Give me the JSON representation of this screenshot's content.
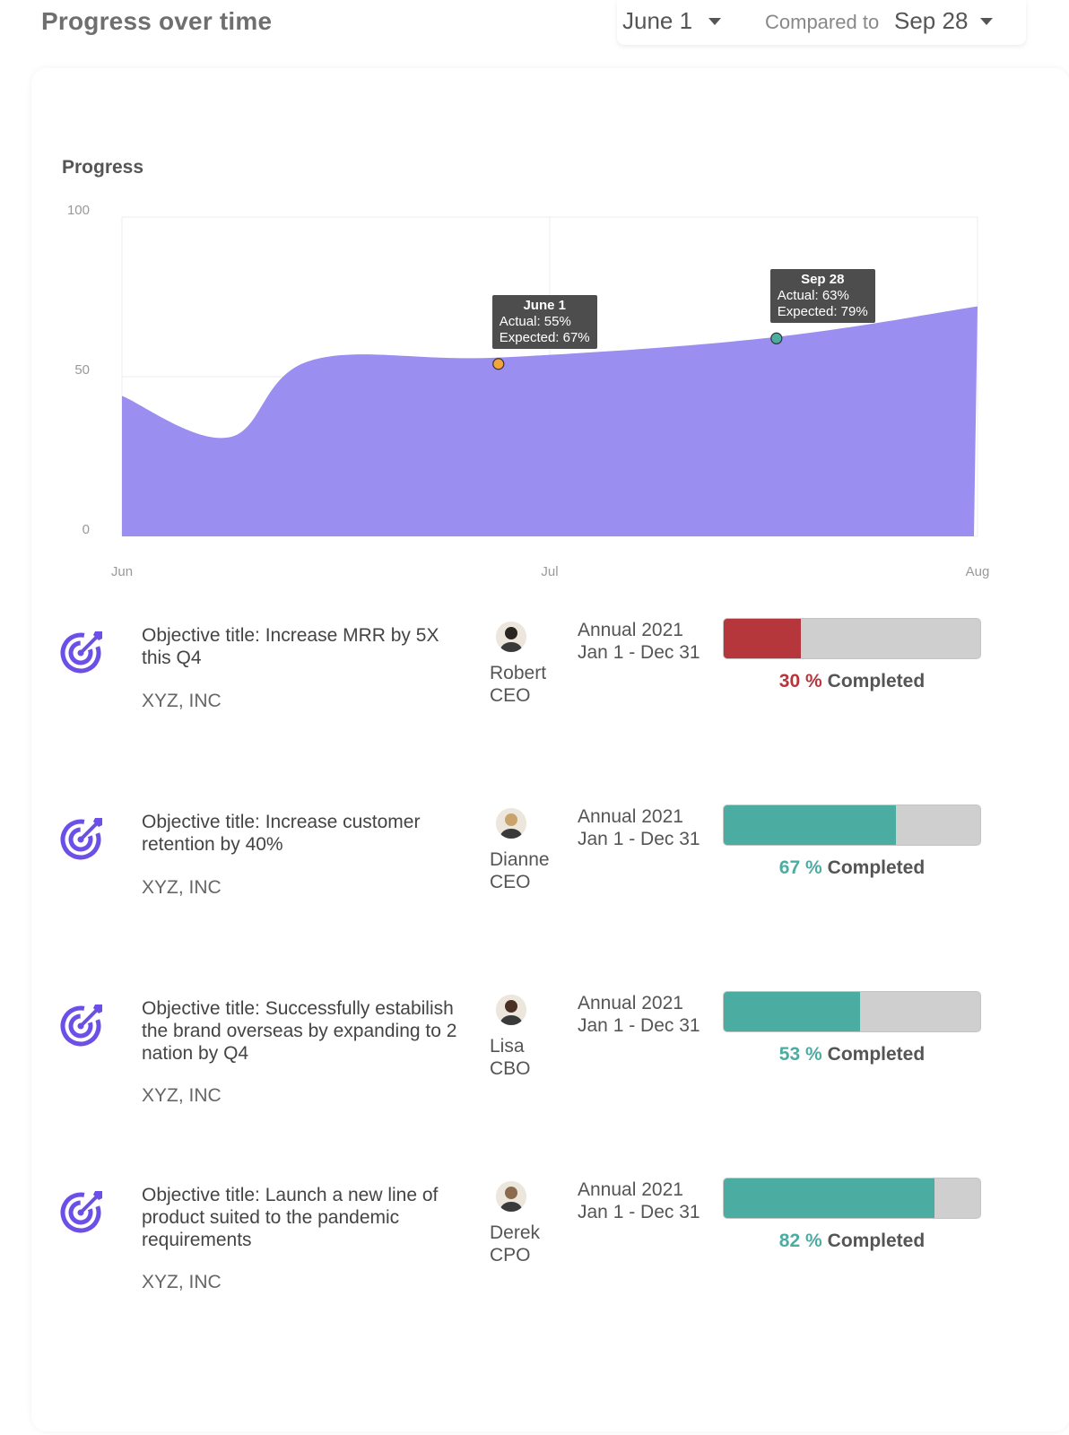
{
  "header": {
    "title": "Progress over time",
    "date_from": "June 1",
    "compared_label": "Compared to",
    "date_to": "Sep 28"
  },
  "colors": {
    "area": "#9a8ef1",
    "on_track": "#4bada2",
    "behind": "#b5373c",
    "accent_icon": "#6b4fe6",
    "marker_orange": "#f5a33b",
    "marker_teal": "#4bada2"
  },
  "chart_data": {
    "type": "area",
    "title": "Progress",
    "ylim": [
      0,
      100
    ],
    "yticks": [
      "100",
      "50",
      "0"
    ],
    "xticks": [
      "Jun",
      "Jul",
      "Aug"
    ],
    "series": [
      {
        "name": "Progress",
        "x": [
          0,
          0.25,
          0.44,
          0.88,
          1.5,
          2.0
        ],
        "values": [
          44,
          31,
          55,
          56,
          62,
          72
        ]
      }
    ],
    "annotations": [
      {
        "title": "June 1",
        "actual": "Actual: 55%",
        "expected": "Expected: 67%",
        "x": 0.88,
        "y": 54,
        "marker": "orange"
      },
      {
        "title": "Sep 28",
        "actual": "Actual: 63%",
        "expected": "Expected: 79%",
        "x": 1.53,
        "y": 62,
        "marker": "teal"
      }
    ]
  },
  "objectives": [
    {
      "title": "Objective title: Increase MRR by 5X this Q4",
      "company": "XYZ, INC",
      "person": "Robert",
      "role": "CEO",
      "year": "Annual 2021",
      "range": "Jan 1 - Dec 31",
      "pct_value": 30,
      "pct": "30 %",
      "completed": "Completed",
      "status": "behind"
    },
    {
      "title": "Objective title: Increase customer retention by 40%",
      "company": "XYZ, INC",
      "person": "Dianne",
      "role": "CEO",
      "year": "Annual 2021",
      "range": "Jan 1 - Dec 31",
      "pct_value": 67,
      "pct": "67 %",
      "completed": "Completed",
      "status": "on_track"
    },
    {
      "title": "Objective title: Successfully estabilish the brand overseas by expanding to 2 nation by Q4",
      "company": "XYZ, INC",
      "person": "Lisa",
      "role": "CBO",
      "year": "Annual 2021",
      "range": "Jan 1 - Dec 31",
      "pct_value": 53,
      "pct": "53 %",
      "completed": "Completed",
      "status": "on_track"
    },
    {
      "title": "Objective title: Launch a new line of product suited to the pandemic requirements",
      "company": "XYZ, INC",
      "person": "Derek",
      "role": "CPO",
      "year": "Annual 2021",
      "range": "Jan 1 - Dec 31",
      "pct_value": 82,
      "pct": "82 %",
      "completed": "Completed",
      "status": "on_track"
    }
  ]
}
